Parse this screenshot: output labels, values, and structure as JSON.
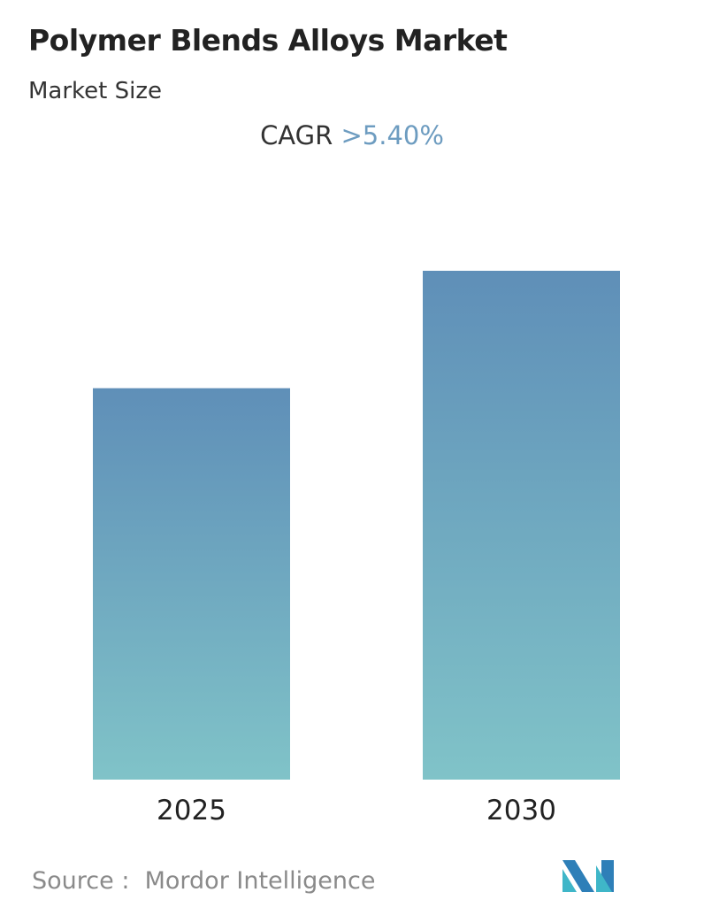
{
  "header": {
    "title": "Polymer Blends Alloys Market",
    "subtitle": "Market Size"
  },
  "cagr": {
    "label": "CAGR",
    "value": ">5.40%",
    "value_color": "#6d9cc0"
  },
  "chart_data": {
    "type": "bar",
    "categories": [
      "2025",
      "2030"
    ],
    "values": [
      1.0,
      1.3
    ],
    "title": "Polymer Blends Alloys Market",
    "xlabel": "",
    "ylabel": "",
    "grid": false,
    "colors": {
      "bar_top": "#5f8fb8",
      "bar_bottom": "#80c3c8"
    }
  },
  "footer": {
    "source_label": "Source :",
    "source": "Mordor Intelligence",
    "logo_text": "Mordor Intelligence"
  }
}
